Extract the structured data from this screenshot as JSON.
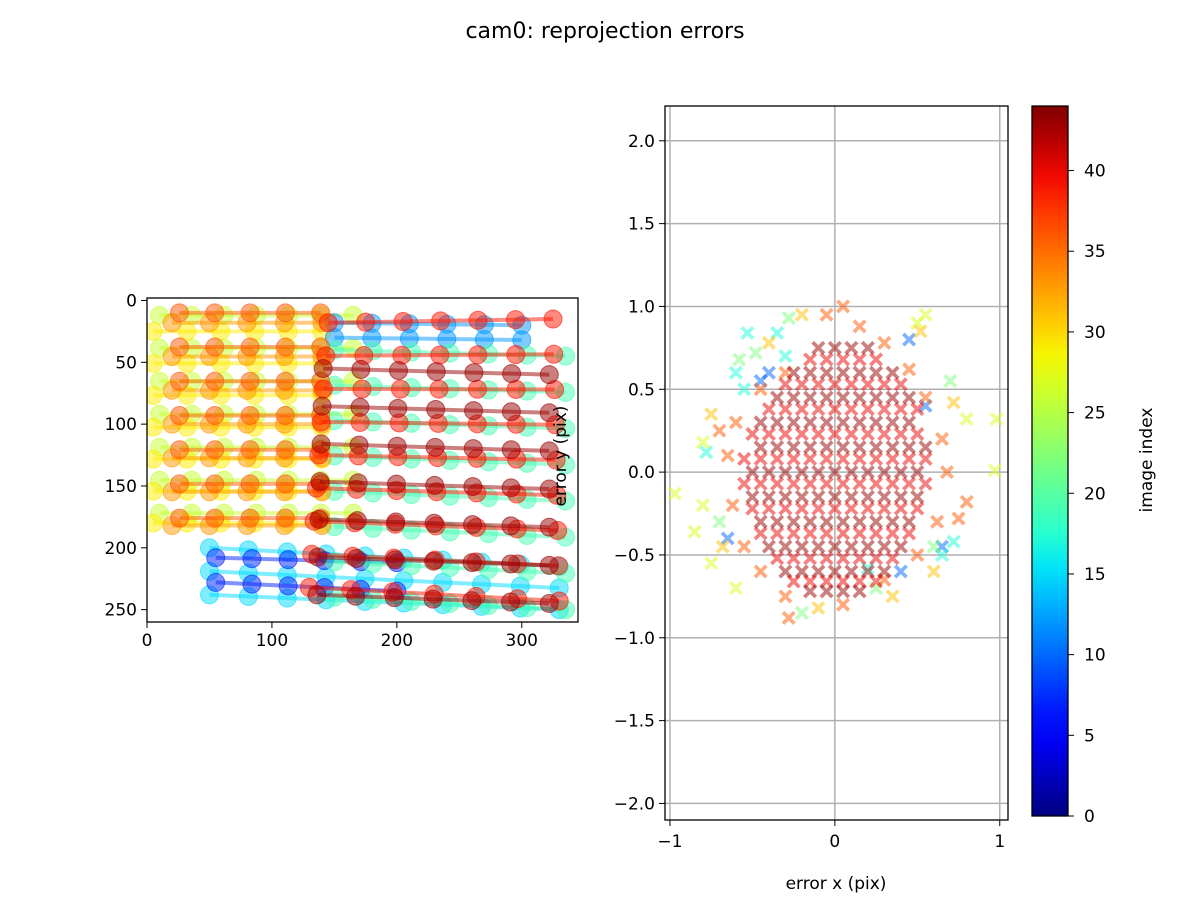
{
  "title": "cam0: reprojection errors",
  "colors": {
    "axes": "#000000",
    "grid": "#b0b0b0",
    "colormap": "jet"
  },
  "chart_data": [
    {
      "type": "scatter",
      "subtype": "corner observations per image, colored by image index, connected by row lines",
      "xlim": [
        0,
        345
      ],
      "ylim": [
        260,
        -2
      ],
      "y_inverted": true,
      "grid": false,
      "xticks": [
        0,
        100,
        200,
        300
      ],
      "yticks": [
        0,
        50,
        100,
        150,
        200,
        250
      ],
      "marker": "circle",
      "alpha": 0.5,
      "grids": [
        {
          "index": 26,
          "tl": [
            10,
            12
          ],
          "tr": [
            165,
            12
          ],
          "bl": [
            10,
            172
          ],
          "br": [
            165,
            172
          ],
          "cols": 7,
          "rows": 7
        },
        {
          "index": 29,
          "tl": [
            5,
            25
          ],
          "tr": [
            140,
            25
          ],
          "bl": [
            5,
            180
          ],
          "br": [
            140,
            180
          ],
          "cols": 6,
          "rows": 7
        },
        {
          "index": 12,
          "tl": [
            150,
            18
          ],
          "tr": [
            300,
            20
          ],
          "bl": [
            150,
            30
          ],
          "br": [
            300,
            32
          ],
          "cols": 6,
          "rows": 2
        },
        {
          "index": 15,
          "tl": [
            50,
            200
          ],
          "tr": [
            330,
            215
          ],
          "bl": [
            50,
            238
          ],
          "br": [
            330,
            250
          ],
          "cols": 10,
          "rows": 3
        },
        {
          "index": 7,
          "tl": [
            55,
            208
          ],
          "tr": [
            200,
            212
          ],
          "bl": [
            55,
            228
          ],
          "br": [
            200,
            235
          ],
          "cols": 6,
          "rows": 2
        },
        {
          "index": 19,
          "tl": [
            150,
            40
          ],
          "tr": [
            335,
            45
          ],
          "bl": [
            150,
            240
          ],
          "br": [
            335,
            250
          ],
          "cols": 7,
          "rows": 8
        },
        {
          "index": 33,
          "tl": [
            20,
            18
          ],
          "tr": [
            140,
            18
          ],
          "bl": [
            20,
            182
          ],
          "br": [
            140,
            182
          ],
          "cols": 5,
          "rows": 7
        },
        {
          "index": 36,
          "tl": [
            26,
            10
          ],
          "tr": [
            139,
            10
          ],
          "bl": [
            26,
            176
          ],
          "br": [
            139,
            176
          ],
          "cols": 5,
          "rows": 7
        },
        {
          "index": 39,
          "tl": [
            145,
            18
          ],
          "tr": [
            325,
            15
          ],
          "bl": [
            130,
            232
          ],
          "br": [
            330,
            243
          ],
          "cols": 7,
          "rows": 9
        },
        {
          "index": 43,
          "tl": [
            141,
            55
          ],
          "tr": [
            322,
            60
          ],
          "bl": [
            136,
            238
          ],
          "br": [
            322,
            245
          ],
          "cols": 7,
          "rows": 7
        }
      ]
    },
    {
      "type": "scatter",
      "xlabel": "error x (pix)",
      "ylabel": "error y (pix)",
      "xlim": [
        -1.03,
        1.05
      ],
      "ylim": [
        -2.1,
        2.21
      ],
      "grid": true,
      "xticks": [
        -1,
        0,
        1
      ],
      "xticklabels": [
        "−1",
        "0",
        "1"
      ],
      "yticks": [
        -2.0,
        -1.5,
        -1.0,
        -0.5,
        0.0,
        0.5,
        1.0,
        1.5,
        2.0
      ],
      "yticklabels": [
        "−2.0",
        "−1.5",
        "−1.0",
        "−0.5",
        "0.0",
        "0.5",
        "1.0",
        "1.5",
        "2.0"
      ],
      "marker": "X",
      "alpha": 0.5,
      "series": [
        {
          "index": 10,
          "points": [
            [
              -0.45,
              0.55
            ],
            [
              0.65,
              -0.45
            ],
            [
              0.55,
              0.4
            ],
            [
              -0.65,
              -0.4
            ],
            [
              0.45,
              0.8
            ],
            [
              0.4,
              -0.6
            ],
            [
              -0.4,
              0.6
            ]
          ]
        },
        {
          "index": 17,
          "points": [
            [
              -0.53,
              0.84
            ],
            [
              -0.35,
              0.84
            ],
            [
              -0.6,
              0.6
            ],
            [
              -0.55,
              0.5
            ],
            [
              -0.78,
              0.12
            ],
            [
              0.65,
              -0.5
            ],
            [
              -0.3,
              0.7
            ],
            [
              0.2,
              -0.58
            ],
            [
              0.72,
              -0.42
            ]
          ]
        },
        {
          "index": 22,
          "points": [
            [
              -0.28,
              0.93
            ],
            [
              -0.58,
              0.68
            ],
            [
              -0.2,
              -0.85
            ],
            [
              0.7,
              0.55
            ],
            [
              0.25,
              -0.7
            ],
            [
              0.6,
              -0.45
            ],
            [
              -0.7,
              -0.3
            ],
            [
              -0.48,
              0.72
            ]
          ]
        },
        {
          "index": 27,
          "points": [
            [
              -0.97,
              -0.13
            ],
            [
              0.98,
              0.32
            ],
            [
              0.97,
              0.01
            ],
            [
              -0.85,
              -0.36
            ],
            [
              0.55,
              0.95
            ],
            [
              -0.75,
              -0.55
            ],
            [
              -0.8,
              0.18
            ],
            [
              0.8,
              0.32
            ],
            [
              -0.6,
              -0.7
            ],
            [
              0.5,
              0.9
            ],
            [
              -0.8,
              -0.2
            ]
          ]
        },
        {
          "index": 31,
          "points": [
            [
              -0.75,
              0.35
            ],
            [
              -0.4,
              0.78
            ],
            [
              0.52,
              0.85
            ],
            [
              0.72,
              0.42
            ],
            [
              -0.68,
              -0.45
            ],
            [
              0.35,
              -0.75
            ],
            [
              -0.1,
              -0.82
            ],
            [
              0.6,
              -0.6
            ],
            [
              -0.2,
              0.95
            ]
          ]
        },
        {
          "index": 36,
          "points": [
            [
              -0.6,
              0.3
            ],
            [
              -0.65,
              0.1
            ],
            [
              -0.62,
              -0.2
            ],
            [
              -0.55,
              -0.45
            ],
            [
              -0.45,
              -0.6
            ],
            [
              -0.3,
              -0.75
            ],
            [
              -0.28,
              -0.88
            ],
            [
              0.05,
              -0.8
            ],
            [
              0.3,
              -0.65
            ],
            [
              0.5,
              -0.5
            ],
            [
              0.62,
              -0.3
            ],
            [
              0.68,
              0
            ],
            [
              0.65,
              0.2
            ],
            [
              0.55,
              0.45
            ],
            [
              0.45,
              0.62
            ],
            [
              0.3,
              0.78
            ],
            [
              0.05,
              1.0
            ],
            [
              -0.05,
              0.95
            ],
            [
              -0.3,
              0.6
            ],
            [
              -0.45,
              0.5
            ],
            [
              0.75,
              -0.28
            ],
            [
              0.8,
              -0.18
            ],
            [
              -0.7,
              0.25
            ],
            [
              0.15,
              0.88
            ]
          ]
        },
        {
          "index": 40,
          "rows": [
            {
              "y": 0.68,
              "x": [
                -0.15,
                -0.05,
                0.05,
                0.15,
                0.25
              ]
            },
            {
              "y": 0.53,
              "x": [
                -0.3,
                -0.2,
                -0.1,
                0,
                0.1,
                0.2,
                0.3,
                0.4
              ]
            },
            {
              "y": 0.38,
              "x": [
                -0.4,
                -0.3,
                -0.2,
                -0.1,
                0,
                0.1,
                0.2,
                0.3,
                0.4,
                0.5
              ]
            },
            {
              "y": 0.23,
              "x": [
                -0.5,
                -0.4,
                -0.3,
                -0.2,
                -0.1,
                0,
                0.1,
                0.2,
                0.3,
                0.4,
                0.5
              ]
            },
            {
              "y": 0.08,
              "x": [
                -0.55,
                -0.45,
                -0.35,
                -0.25,
                -0.15,
                -0.05,
                0.05,
                0.15,
                0.25,
                0.35,
                0.45,
                0.55
              ]
            },
            {
              "y": -0.07,
              "x": [
                -0.55,
                -0.45,
                -0.35,
                -0.25,
                -0.15,
                -0.05,
                0.05,
                0.15,
                0.25,
                0.35,
                0.45,
                0.55
              ]
            },
            {
              "y": -0.22,
              "x": [
                -0.5,
                -0.4,
                -0.3,
                -0.2,
                -0.1,
                0,
                0.1,
                0.2,
                0.3,
                0.4,
                0.5
              ]
            },
            {
              "y": -0.37,
              "x": [
                -0.45,
                -0.35,
                -0.25,
                -0.15,
                -0.05,
                0.05,
                0.15,
                0.25,
                0.35,
                0.45
              ]
            },
            {
              "y": -0.52,
              "x": [
                -0.35,
                -0.25,
                -0.15,
                -0.05,
                0.05,
                0.15,
                0.25,
                0.35
              ]
            },
            {
              "y": -0.66,
              "x": [
                -0.25,
                -0.15,
                -0.05,
                0.05,
                0.15,
                0.25
              ]
            }
          ]
        },
        {
          "index": 43,
          "rows": [
            {
              "y": 0.75,
              "x": [
                -0.1,
                0,
                0.1,
                0.2
              ]
            },
            {
              "y": 0.6,
              "x": [
                -0.25,
                -0.15,
                -0.05,
                0.05,
                0.15,
                0.25,
                0.35
              ]
            },
            {
              "y": 0.45,
              "x": [
                -0.35,
                -0.25,
                -0.15,
                -0.05,
                0.05,
                0.15,
                0.25,
                0.35,
                0.45
              ]
            },
            {
              "y": 0.3,
              "x": [
                -0.45,
                -0.35,
                -0.25,
                -0.15,
                -0.05,
                0.05,
                0.15,
                0.25,
                0.35,
                0.45
              ]
            },
            {
              "y": 0.15,
              "x": [
                -0.45,
                -0.35,
                -0.25,
                -0.15,
                -0.05,
                0.05,
                0.15,
                0.25,
                0.35,
                0.45,
                0.55
              ]
            },
            {
              "y": 0.0,
              "x": [
                -0.5,
                -0.4,
                -0.3,
                -0.2,
                -0.1,
                0,
                0.1,
                0.2,
                0.3,
                0.4,
                0.5
              ]
            },
            {
              "y": -0.15,
              "x": [
                -0.5,
                -0.4,
                -0.3,
                -0.2,
                -0.1,
                0,
                0.1,
                0.2,
                0.3,
                0.4,
                0.5
              ]
            },
            {
              "y": -0.3,
              "x": [
                -0.45,
                -0.35,
                -0.25,
                -0.15,
                -0.05,
                0.05,
                0.15,
                0.25,
                0.35,
                0.45
              ]
            },
            {
              "y": -0.45,
              "x": [
                -0.4,
                -0.3,
                -0.2,
                -0.1,
                0,
                0.1,
                0.2,
                0.3,
                0.4
              ]
            },
            {
              "y": -0.6,
              "x": [
                -0.3,
                -0.2,
                -0.1,
                0,
                0.1,
                0.2,
                0.3
              ]
            },
            {
              "y": -0.72,
              "x": [
                -0.15,
                -0.05,
                0.05,
                0.15
              ]
            }
          ]
        }
      ]
    },
    {
      "type": "colorbar",
      "label": "image index",
      "range": [
        0,
        44
      ],
      "ticks": [
        0,
        5,
        10,
        15,
        20,
        25,
        30,
        35,
        40
      ],
      "colormap": "jet"
    }
  ]
}
